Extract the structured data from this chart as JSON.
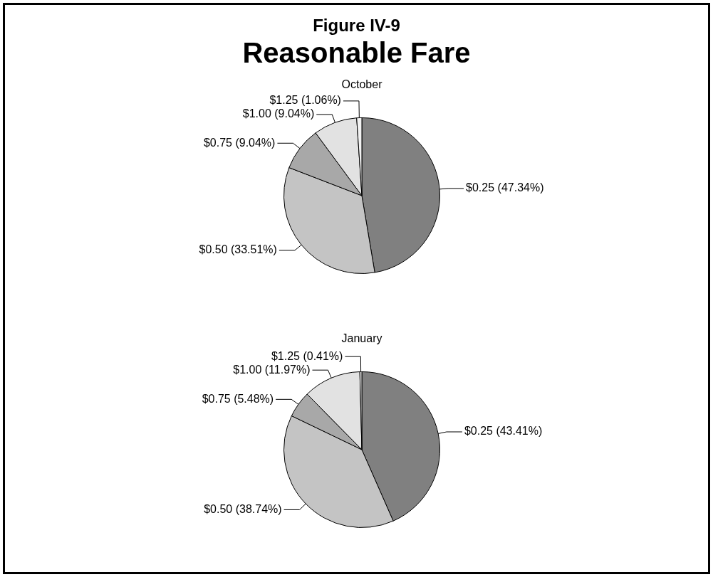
{
  "chart_data": [
    {
      "type": "pie",
      "title": "Figure IV-9",
      "subtitle": "Reasonable Fare",
      "annotations": [
        "October"
      ],
      "categories": [
        "$0.25",
        "$0.50",
        "$0.75",
        "$1.00",
        "$1.25"
      ],
      "values": [
        47.34,
        33.51,
        9.04,
        9.04,
        1.06
      ],
      "value_labels": [
        "(47.34%)",
        "(33.51%)",
        "(9.04%)",
        "(9.04%)",
        "(1.06%)"
      ],
      "colors": [
        "#808080",
        "#c4c4c4",
        "#a8a8a8",
        "#e2e2e2",
        "#f2f2f2"
      ],
      "legend": false
    },
    {
      "type": "pie",
      "annotations": [
        "January"
      ],
      "categories": [
        "$0.25",
        "$0.50",
        "$0.75",
        "$1.00",
        "$1.25"
      ],
      "values": [
        43.41,
        38.74,
        5.48,
        11.97,
        0.41
      ],
      "value_labels": [
        "(43.41%)",
        "(38.74%)",
        "(5.48%)",
        "(11.97%)",
        "(0.41%)"
      ],
      "colors": [
        "#808080",
        "#c4c4c4",
        "#a8a8a8",
        "#e2e2e2",
        "#f2f2f2"
      ],
      "legend": false
    }
  ]
}
